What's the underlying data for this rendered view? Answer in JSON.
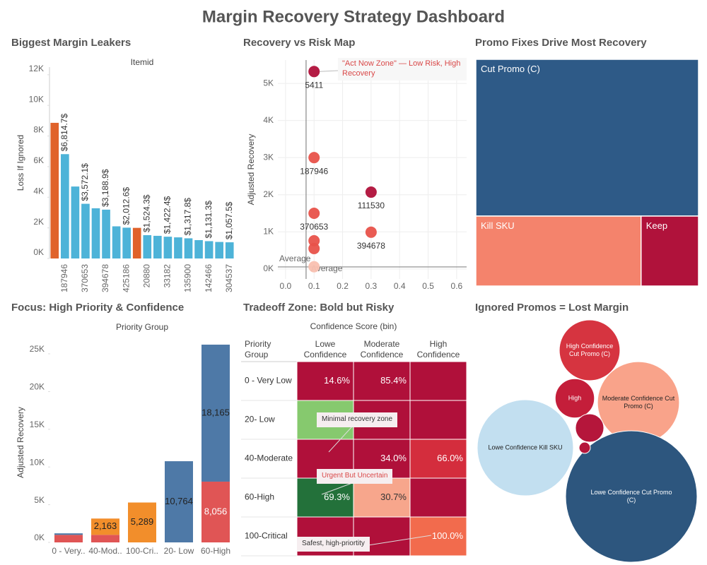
{
  "title": "Margin Recovery Strategy Dashboard",
  "chart_data": [
    {
      "type": "bar",
      "title": "Biggest Margin Leakers",
      "subtitle": "Itemid",
      "y_label": "Loss If Ignored",
      "categories": [
        null,
        "187946",
        null,
        "370653",
        null,
        "394678",
        null,
        "425186",
        null,
        "20880",
        null,
        "33182",
        null,
        "135900",
        null,
        "142466",
        null,
        "304537"
      ],
      "values": [
        8860,
        6814.7,
        4700,
        3572.1,
        3280,
        3188.9,
        2100,
        2012.6,
        2000,
        1524.3,
        1480,
        1422.4,
        1380,
        1317.8,
        1200,
        1131.3,
        1080,
        1057.5
      ],
      "value_labels": [
        null,
        "$6,814.7$",
        null,
        "$3,572.1$",
        null,
        "$3,188.9$",
        null,
        "$2,012.6$",
        null,
        "$1,524.3$",
        null,
        "$1,422.4$",
        null,
        "$1,317.8$",
        null,
        "$1,131.3$",
        null,
        "$1,057.5$"
      ],
      "colors": [
        "#e0622a",
        "#4db3d8",
        "#4db3d8",
        "#4db3d8",
        "#4db3d8",
        "#4db3d8",
        "#4db3d8",
        "#4db3d8",
        "#e0622a",
        "#4db3d8",
        "#4db3d8",
        "#4db3d8",
        "#4db3d8",
        "#4db3d8",
        "#4db3d8",
        "#4db3d8",
        "#4db3d8",
        "#4db3d8"
      ],
      "ylim": [
        0,
        12500
      ],
      "yticks": [
        {
          "value": 0,
          "label": "0K"
        },
        {
          "value": 2000,
          "label": "2K"
        },
        {
          "value": 4000,
          "label": "4K"
        },
        {
          "value": 6000,
          "label": "6K"
        },
        {
          "value": 8000,
          "label": "8K"
        },
        {
          "value": 10000,
          "label": "10K"
        },
        {
          "value": 12000,
          "label": "12K"
        }
      ],
      "grid": false
    },
    {
      "type": "scatter",
      "title": "Recovery vs Risk Map",
      "y_label": "Adjusted Recovery",
      "x": [
        0.1,
        0.1,
        0.3,
        0.1,
        0.3,
        0.1,
        0.1,
        0.1
      ],
      "values": [
        5320,
        3000,
        2070,
        1500,
        990,
        760,
        550,
        60
      ],
      "labels": [
        "5411",
        "187946",
        "111530",
        "370653",
        "394678",
        null,
        null,
        null
      ],
      "colors": [
        "#b0103a",
        "#e8524a",
        "#b0103a",
        "#e8524a",
        "#e8524a",
        "#e8524a",
        "#e8524a",
        "#f9c0b0"
      ],
      "xlim": [
        -0.027,
        0.635
      ],
      "ylim": [
        -270,
        5630
      ],
      "xticks": [
        {
          "value": 0,
          "label": "0.0"
        },
        0.1,
        0.2,
        0.3,
        0.4,
        0.5,
        0.6
      ],
      "yticks": [
        {
          "value": 0,
          "label": "0K"
        },
        {
          "value": 1000,
          "label": "1K"
        },
        {
          "value": 2000,
          "label": "2K"
        },
        {
          "value": 3000,
          "label": "3K"
        },
        {
          "value": 4000,
          "label": "4K"
        },
        {
          "value": 5000,
          "label": "5K"
        }
      ],
      "reference_lines": [
        {
          "axis": "y",
          "value": 55,
          "label": "Average"
        },
        {
          "axis": "x",
          "value": 0.072,
          "label": "Average"
        }
      ],
      "annotation": "\"Act Now Zone\" — Low Risk, High Recovery",
      "grid": true
    },
    {
      "type": "treemap",
      "title": "Promo Fixes Drive Most Recovery",
      "categories": [
        "Cut Promo (C)",
        "Kill SKU",
        "Keep"
      ],
      "values": [
        31700,
        10500,
        3650
      ],
      "colors": [
        "#2e5a87",
        "#f4836c",
        "#b0123b"
      ]
    },
    {
      "type": "stacked_bar",
      "title": "Focus: High Priority & Confidence",
      "subtitle": "Priority Group",
      "y_label": "Adjusted Recovery",
      "categories": [
        "0 - Very..",
        "40-Mod..",
        "100-Cri..",
        "20- Low",
        "60-High"
      ],
      "series": [
        {
          "color": "#e05555",
          "values": [
            1000,
            1000,
            null,
            null,
            8056
          ],
          "value_labels": [
            null,
            null,
            null,
            null,
            "8,056"
          ]
        },
        {
          "color": "#f28e2b",
          "values": [
            null,
            2163,
            5289,
            null,
            null
          ],
          "value_labels": [
            null,
            "2,163",
            "5,289",
            null,
            null
          ]
        },
        {
          "color": "#4e79a7",
          "values": [
            200,
            null,
            null,
            10764,
            18165
          ],
          "value_labels": [
            null,
            null,
            null,
            "10,764",
            "18,165"
          ]
        }
      ],
      "ylim": [
        0,
        26500
      ],
      "yticks": [
        {
          "value": 0,
          "label": "0K"
        },
        {
          "value": 5000,
          "label": "5K"
        },
        {
          "value": 10000,
          "label": "10K"
        },
        {
          "value": 15000,
          "label": "15K"
        },
        {
          "value": 20000,
          "label": "20K"
        },
        {
          "value": 25000,
          "label": "25K"
        }
      ]
    },
    {
      "type": "heatmap",
      "title": "Tradeoff Zone: Bold but Risky",
      "subtitle": "Confidence Score (bin)",
      "row_header": "Priority Group",
      "columns": [
        "Lowe Confidence",
        "Moderate Confidence",
        "High Confidence"
      ],
      "rows": [
        "0 - Very Low",
        "20- Low",
        "40-Moderate",
        "60-High",
        "100-Critical"
      ],
      "values": [
        [
          14.6,
          85.4,
          null
        ],
        [
          null,
          null,
          null
        ],
        [
          null,
          34.0,
          66.0
        ],
        [
          69.3,
          30.7,
          null
        ],
        [
          null,
          null,
          100.0
        ]
      ],
      "value_labels": [
        [
          "14.6%",
          "85.4%",
          null
        ],
        [
          null,
          null,
          null
        ],
        [
          null,
          "34.0%",
          "66.0%"
        ],
        [
          "69.3%",
          "30.7%",
          null
        ],
        [
          null,
          null,
          "100.0%"
        ]
      ],
      "colors": [
        [
          "#b0103a",
          "#b0103a",
          "#b0103a"
        ],
        [
          "#86c96e",
          "#b0103a",
          "#b0103a"
        ],
        [
          "#b0103a",
          "#b0103a",
          "#d42d3d"
        ],
        [
          "#23713a",
          "#f7a68c",
          "#b0103a"
        ],
        [
          "#b0103a",
          "#b0103a",
          "#f26b4d"
        ]
      ],
      "annotations": [
        "Minimal recovery zone",
        "Urgent But Uncertain",
        "Safest, high-priortity"
      ]
    },
    {
      "type": "bubble",
      "title": "Ignored Promos = Lost Margin",
      "labels": [
        "High Confidence Cut Promo (C)",
        "High",
        "Moderate Confidence Cut Promo (C)",
        "Lowe Confidence Kill SKU",
        "Lowe Confidence Cut Promo (C)",
        null,
        null
      ],
      "values": [
        5500,
        2300,
        10000,
        13800,
        25800,
        1200,
        190
      ],
      "colors": [
        "#d63440",
        "#c41e3a",
        "#f9a38a",
        "#c2dff0",
        "#2d567e",
        "#b5163b",
        "#b5163b"
      ]
    }
  ]
}
